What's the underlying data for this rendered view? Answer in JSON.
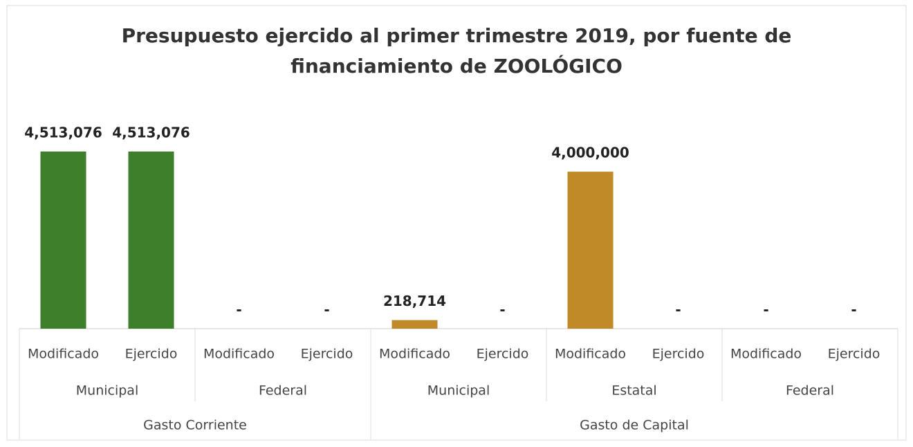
{
  "chart_data": {
    "type": "bar",
    "title": "Presupuesto ejercido al primer trimestre 2019, por fuente de financiamiento de ZOOLÓGICO",
    "category_groups": [
      {
        "name": "Gasto Corriente",
        "color": "#3d7f2a",
        "subgroups": [
          {
            "name": "Municipal",
            "categories": [
              "Modificado",
              "Ejercido"
            ],
            "values": [
              4513076,
              4513076
            ],
            "value_labels": [
              "4,513,076",
              "4,513,076"
            ]
          },
          {
            "name": "Federal",
            "categories": [
              "Modificado",
              "Ejercido"
            ],
            "values": [
              0,
              0
            ],
            "value_labels": [
              "-",
              "-"
            ]
          }
        ]
      },
      {
        "name": "Gasto de Capital",
        "color": "#c08a28",
        "subgroups": [
          {
            "name": "Municipal",
            "categories": [
              "Modificado",
              "Ejercido"
            ],
            "values": [
              218714,
              0
            ],
            "value_labels": [
              "218,714",
              "-"
            ]
          },
          {
            "name": "Estatal",
            "categories": [
              "Modificado",
              "Ejercido"
            ],
            "values": [
              4000000,
              0
            ],
            "value_labels": [
              "4,000,000",
              "-"
            ]
          },
          {
            "name": "Federal",
            "categories": [
              "Modificado",
              "Ejercido"
            ],
            "values": [
              0,
              0
            ],
            "value_labels": [
              "-",
              "-"
            ]
          }
        ]
      }
    ]
  }
}
